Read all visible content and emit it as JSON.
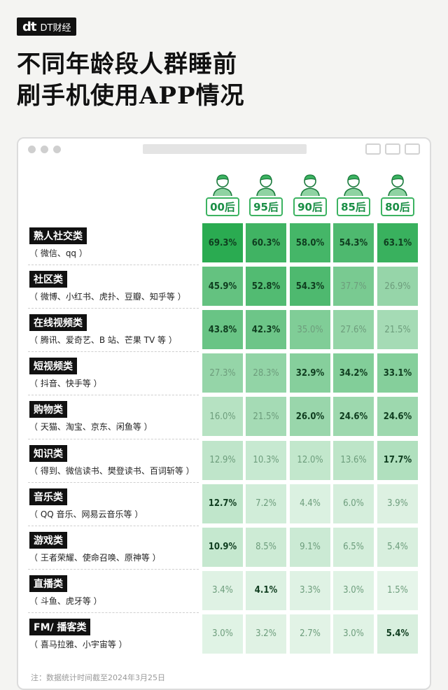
{
  "brand": {
    "mark": "dt",
    "name": "DT财经"
  },
  "title": {
    "line1": "不同年龄段人群睡前",
    "line2": "刷手机使用APP情况"
  },
  "colors": {
    "accent": "#3cb361",
    "dark_green": "#1a7a3c",
    "black": "#111111"
  },
  "note": "注：数据统计时间截至2024年3月25日",
  "chart_data": {
    "type": "heatmap",
    "title": "不同年龄段人群睡前刷手机使用APP情况",
    "unit": "%",
    "columns": [
      "00后",
      "95后",
      "90后",
      "85后",
      "80后"
    ],
    "rows": [
      {
        "category": "熟人社交类",
        "examples": "（ 微信、qq ）",
        "values": [
          "69.3%",
          "60.3%",
          "58.0%",
          "54.3%",
          "63.1%"
        ],
        "nums": [
          69.3,
          60.3,
          58.0,
          54.3,
          63.1
        ]
      },
      {
        "category": "社区类",
        "examples": "（ 微博、小红书、虎扑、豆瓣、知乎等 ）",
        "values": [
          "45.9%",
          "52.8%",
          "54.3%",
          "37.7%",
          "26.9%"
        ],
        "nums": [
          45.9,
          52.8,
          54.3,
          37.7,
          26.9
        ]
      },
      {
        "category": "在线视频类",
        "examples": "（ 腾讯、爱奇艺、B 站、芒果 TV 等 ）",
        "values": [
          "43.8%",
          "42.3%",
          "35.0%",
          "27.6%",
          "21.5%"
        ],
        "nums": [
          43.8,
          42.3,
          35.0,
          27.6,
          21.5
        ]
      },
      {
        "category": "短视频类",
        "examples": "（ 抖音、快手等 ）",
        "values": [
          "27.3%",
          "28.3%",
          "32.9%",
          "34.2%",
          "33.1%"
        ],
        "nums": [
          27.3,
          28.3,
          32.9,
          34.2,
          33.1
        ]
      },
      {
        "category": "购物类",
        "examples": "（ 天猫、淘宝、京东、闲鱼等 ）",
        "values": [
          "16.0%",
          "21.5%",
          "26.0%",
          "24.6%",
          "24.6%"
        ],
        "nums": [
          16.0,
          21.5,
          26.0,
          24.6,
          24.6
        ]
      },
      {
        "category": "知识类",
        "examples": "（ 得到、微信读书、樊登读书、百词斩等 ）",
        "values": [
          "12.9%",
          "10.3%",
          "12.0%",
          "13.6%",
          "17.7%"
        ],
        "nums": [
          12.9,
          10.3,
          12.0,
          13.6,
          17.7
        ]
      },
      {
        "category": "音乐类",
        "examples": "（ QQ 音乐、网易云音乐等 ）",
        "values": [
          "12.7%",
          "7.2%",
          "4.4%",
          "6.0%",
          "3.9%"
        ],
        "nums": [
          12.7,
          7.2,
          4.4,
          6.0,
          3.9
        ]
      },
      {
        "category": "游戏类",
        "examples": "（ 王者荣耀、使命召唤、原神等 ）",
        "values": [
          "10.9%",
          "8.5%",
          "9.1%",
          "6.5%",
          "5.4%"
        ],
        "nums": [
          10.9,
          8.5,
          9.1,
          6.5,
          5.4
        ]
      },
      {
        "category": "直播类",
        "examples": "（ 斗鱼、虎牙等 ）",
        "values": [
          "3.4%",
          "4.1%",
          "3.3%",
          "3.0%",
          "1.5%"
        ],
        "nums": [
          3.4,
          4.1,
          3.3,
          3.0,
          1.5
        ]
      },
      {
        "category": "FM/ 播客类",
        "examples": "（ 喜马拉雅、小宇宙等 ）",
        "values": [
          "3.0%",
          "3.2%",
          "2.7%",
          "3.0%",
          "5.4%"
        ],
        "nums": [
          3.0,
          3.2,
          2.7,
          3.0,
          5.4
        ]
      }
    ]
  }
}
